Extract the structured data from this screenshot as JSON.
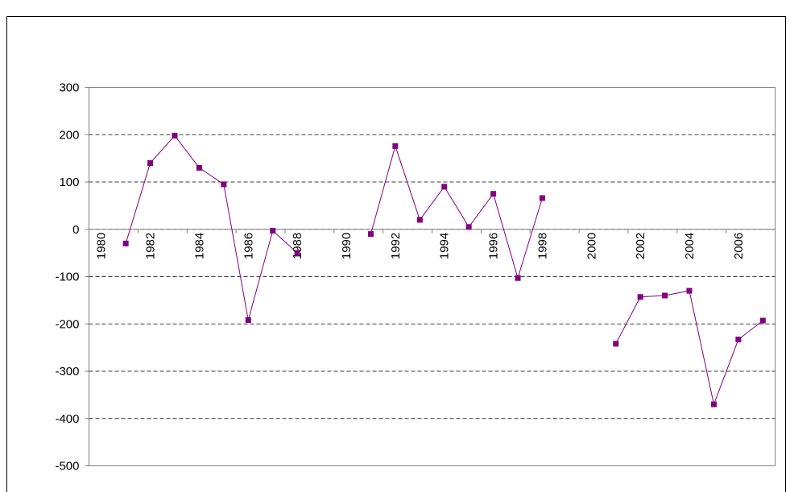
{
  "chart_data": {
    "type": "line",
    "color": "#800080",
    "grid": true,
    "marker": "square",
    "x": [
      1980,
      1981,
      1982,
      1983,
      1984,
      1985,
      1986,
      1987,
      1988,
      1989,
      1990,
      1991,
      1992,
      1993,
      1994,
      1995,
      1996,
      1997,
      1998,
      1999,
      2000,
      2001,
      2002,
      2003,
      2004,
      2005,
      2006,
      2007
    ],
    "values": [
      null,
      -30,
      140,
      198,
      130,
      95,
      -192,
      -3,
      -50,
      null,
      null,
      -10,
      176,
      20,
      90,
      5,
      75,
      -103,
      66,
      null,
      null,
      -242,
      -143,
      -140,
      -130,
      -370,
      -233,
      -193
    ],
    "xlim": [
      1979.5,
      2007.5
    ],
    "xticks": [
      1980,
      1982,
      1984,
      1986,
      1988,
      1990,
      1992,
      1994,
      1996,
      1998,
      2000,
      2002,
      2004,
      2006
    ],
    "ylim": [
      -500,
      300
    ],
    "yticks": [
      -500,
      -400,
      -300,
      -200,
      -100,
      0,
      100,
      200,
      300
    ]
  }
}
